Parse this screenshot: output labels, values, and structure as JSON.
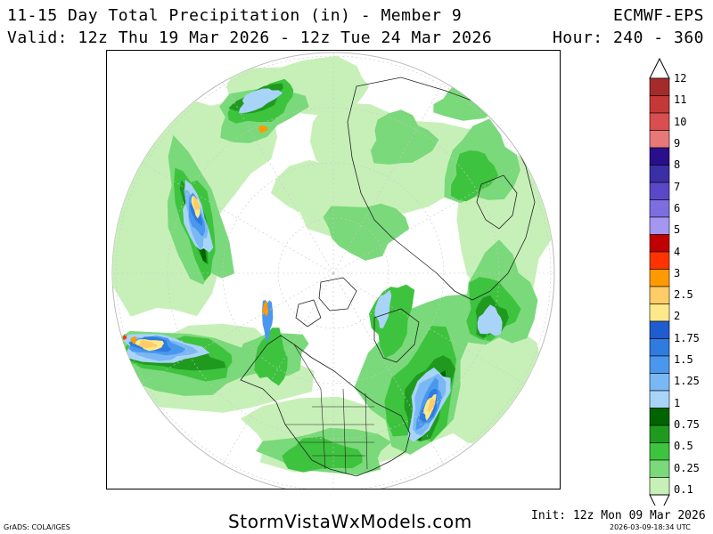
{
  "header": {
    "title": "11-15 Day Total Precipitation (in) - Member 9",
    "model": "ECMWF-EPS",
    "valid": "Valid: 12z Thu 19 Mar 2026 - 12z Tue 24 Mar 2026",
    "hour": "Hour: 240 - 360"
  },
  "map": {
    "projection": "polar-stereographic-north",
    "boundaries": "coastlines and political borders",
    "precip_regions": [
      {
        "region": "North Pacific storm track",
        "max_in": 3
      },
      {
        "region": "Gulf of Alaska",
        "max_in": 3
      },
      {
        "region": "North Atlantic storm track",
        "max_in": 2.5
      },
      {
        "region": "Pacific Northwest coast",
        "max_in": 2.5
      },
      {
        "region": "Iceland / Norwegian Sea",
        "max_in": 1.5
      },
      {
        "region": "Western Europe",
        "max_in": 2
      },
      {
        "region": "East Asia / Japan",
        "max_in": 2.5
      },
      {
        "region": "Eastern North America",
        "max_in": 0.75
      }
    ]
  },
  "legend": {
    "levels": [
      "12",
      "11",
      "10",
      "9",
      "8",
      "7",
      "6",
      "5",
      "4",
      "3",
      "2.5",
      "2",
      "1.75",
      "1.5",
      "1.25",
      "1",
      "0.75",
      "0.5",
      "0.25",
      "0.1"
    ],
    "colors": [
      "#a52b2b",
      "#c43838",
      "#d94f4f",
      "#e87878",
      "#2a0f8c",
      "#3a2fa5",
      "#5a48c8",
      "#7d6ee0",
      "#a596f2",
      "#c00000",
      "#ff3300",
      "#ff9900",
      "#ffcc66",
      "#fde98a",
      "#1e5ccf",
      "#2f7be0",
      "#4a98ee",
      "#7ab8f5",
      "#a8d4f8",
      "#006400"
    ],
    "low_colors": [
      "#1f9a1f",
      "#3ec33e",
      "#7ad97a",
      "#c7f0b8"
    ]
  },
  "footer": {
    "credit": "GrADS: COLA/IGES",
    "site": "StormVistaWxModels.com",
    "init": "Init: 12z Mon 09 Mar 2026",
    "stamp": "2026-03-09-18:34 UTC"
  }
}
